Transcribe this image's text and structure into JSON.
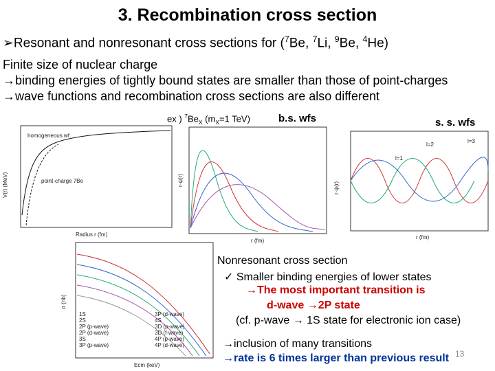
{
  "title": "3. Recombination cross section",
  "bullet": {
    "parts": [
      "Resonant and nonresonant cross sections for (",
      "7",
      "Be, ",
      "7",
      "Li, ",
      "9",
      "Be, ",
      "4",
      "He)"
    ]
  },
  "intro": [
    "Finite size of nuclear charge",
    "→binding energies of tightly bound states are smaller than those of point-charges",
    "→wave functions and recombination cross sections are also different"
  ],
  "caption": {
    "parts": [
      "ex ) ",
      "7",
      "Be",
      "X",
      " (m",
      "X",
      "=1 TeV)"
    ],
    "bs": "b.s. wfs",
    "ss": "s. s. wfs"
  },
  "plot1": {
    "ylabel": "V(r) (MeV)",
    "xlabel": "Radius r (fm)",
    "homogeneous": "homogeneous wf",
    "point": "point-charge 7Be"
  },
  "plot2": {
    "xlabel": "r (fm)",
    "ylabel": "r·ψ(r)"
  },
  "plot3": {
    "xlabel": "r (fm)",
    "ylabel": "r·ψ(r)",
    "labels": [
      "l=1",
      "l=2",
      "l=3"
    ]
  },
  "plot4": {
    "xlabel": "Ecm (keV)",
    "ylabel": "σ (nb)",
    "legend": [
      "1S",
      "2S",
      "2P (p-wave)",
      "2P (d-wave)",
      "3S",
      "3P (p-wave)",
      "3P (d-wave)",
      "4S",
      "3D (p-wave)",
      "3D (f-wave)",
      "4P (p-wave)",
      "4P (d-wave)"
    ]
  },
  "right": {
    "heading": "Nonresonant cross section",
    "check": "✓  Smaller binding energies of lower states",
    "red1": "→The most important transition is",
    "red2": "d-wave →2P state",
    "cf": "(cf. p-wave → 1S state for electronic ion case)",
    "inclusion": "→inclusion of many transitions",
    "rate": "→rate is 6 times larger than previous result"
  },
  "page": "13"
}
